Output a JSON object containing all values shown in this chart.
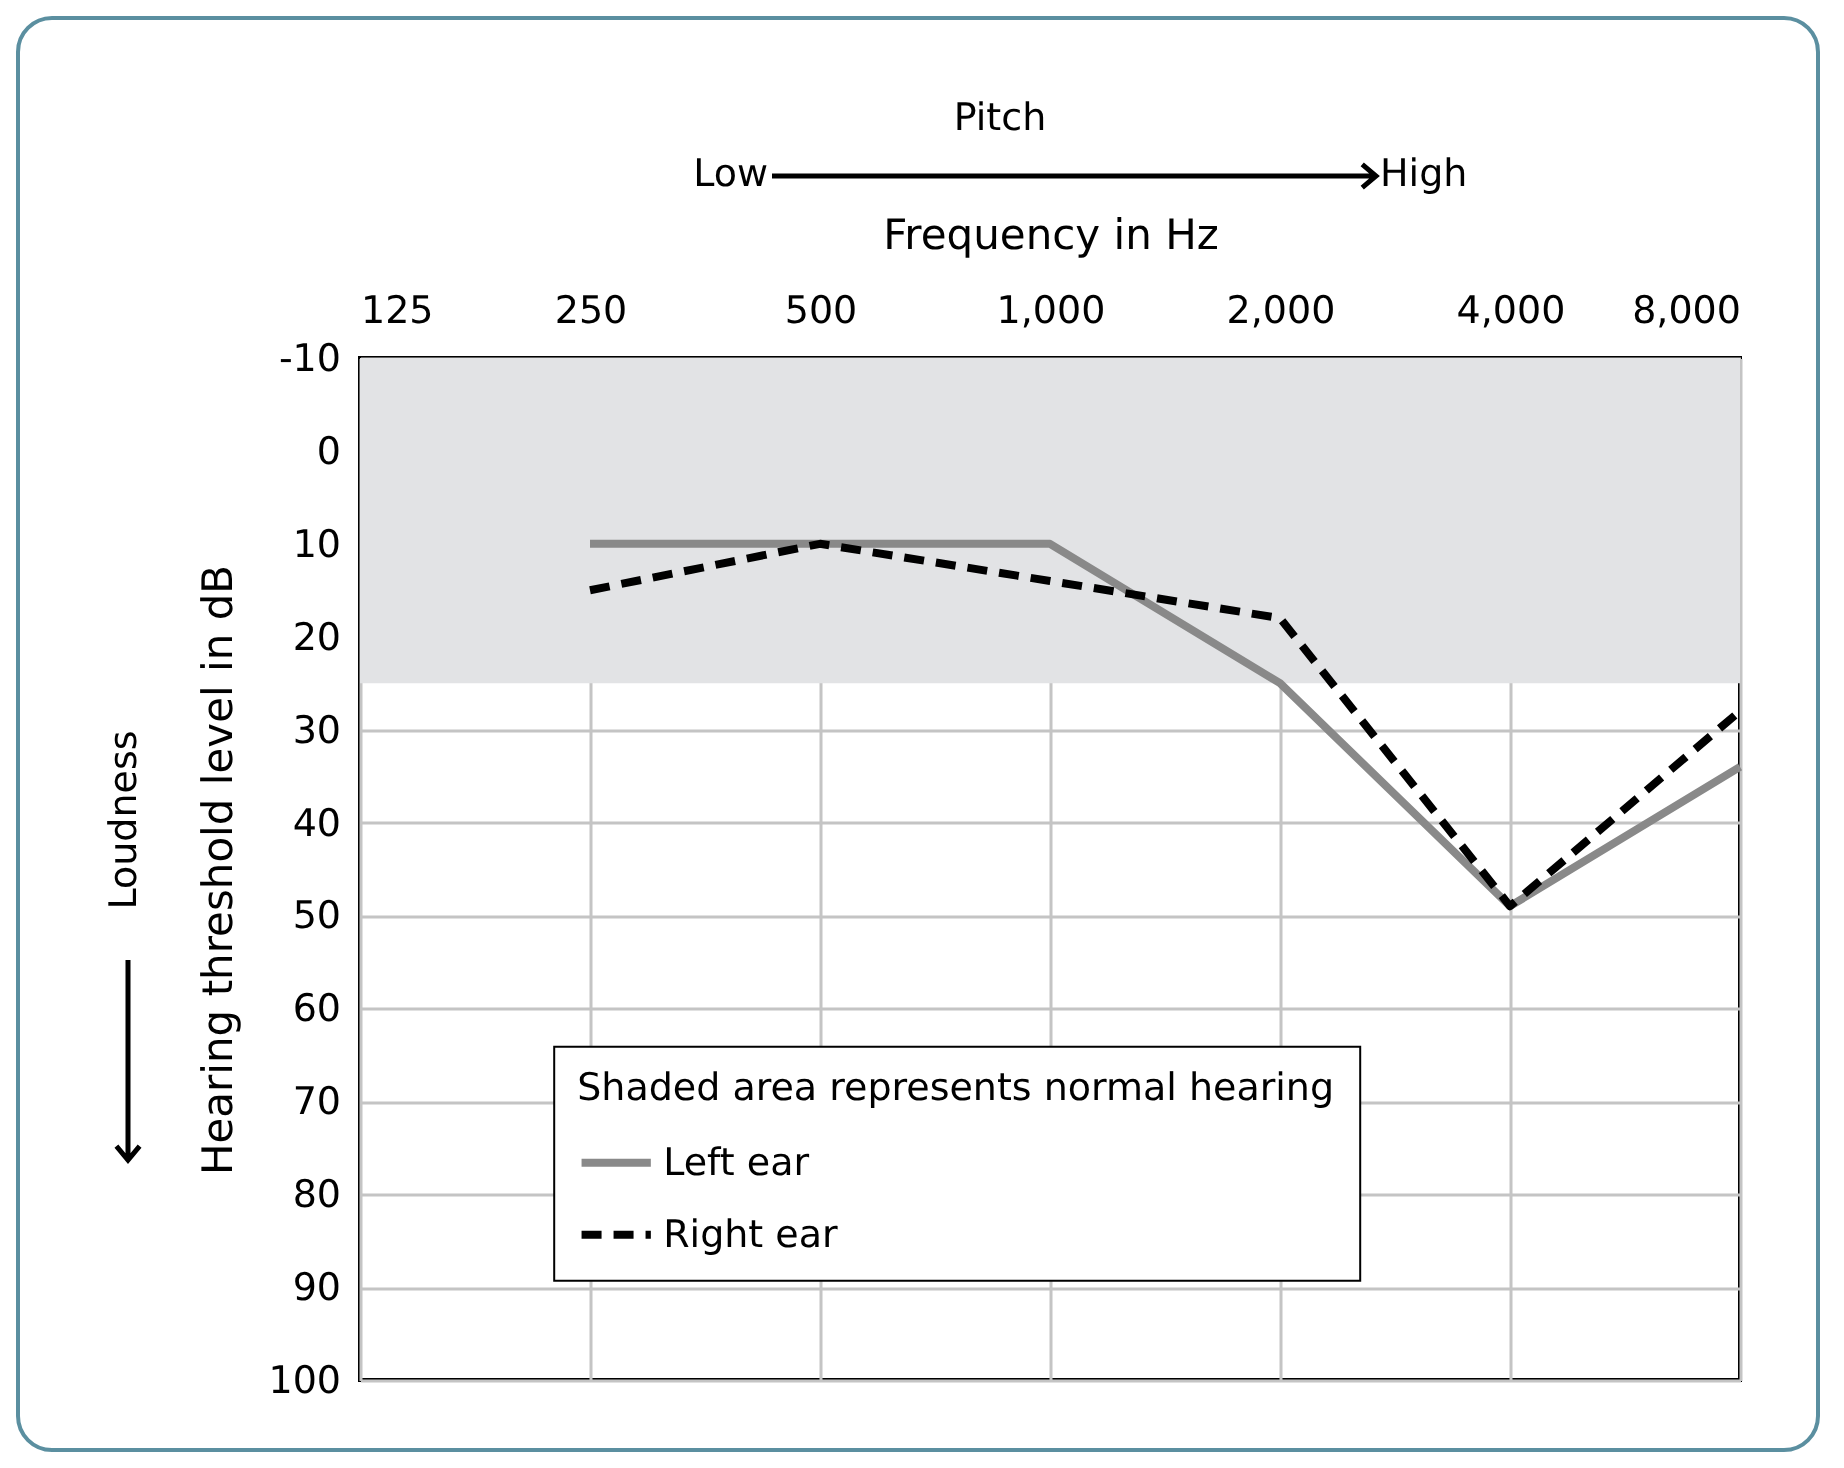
{
  "chart_data": {
    "type": "line",
    "xlabel": "Frequency in Hz",
    "ylabel": "Hearing threshold level in dB",
    "legend_title": "Shaded area represents normal hearing",
    "annotations": [
      "Pitch",
      "Low",
      "High",
      "Loudness"
    ],
    "x": [
      250,
      500,
      1000,
      2000,
      4000,
      8000
    ],
    "series": [
      {
        "name": "Left ear",
        "color": "#898989",
        "line_style": "solid",
        "values": [
          10,
          10,
          10,
          25,
          49,
          34
        ]
      },
      {
        "name": "Right ear",
        "color": "#000000",
        "line_style": "dashed",
        "values": [
          15,
          10,
          14,
          18,
          49,
          28
        ]
      }
    ],
    "log": "x",
    "xlim": [
      125,
      8000
    ],
    "xticks": [
      125,
      250,
      500,
      {
        "value": 1000,
        "label": "1,000"
      },
      {
        "value": 2000,
        "label": "2,000"
      },
      {
        "value": 4000,
        "label": "4,000"
      },
      {
        "value": 8000,
        "label": "8,000"
      }
    ],
    "ylim": [
      100,
      -10
    ],
    "yticks": [
      -10,
      0,
      10,
      20,
      30,
      40,
      50,
      60,
      70,
      80,
      90,
      100
    ],
    "bands": [
      {
        "axis": "y",
        "from": -10,
        "to": 25,
        "color": "#e2e3e5"
      }
    ],
    "grid": true,
    "legend": "bottom",
    "marker": "none"
  }
}
